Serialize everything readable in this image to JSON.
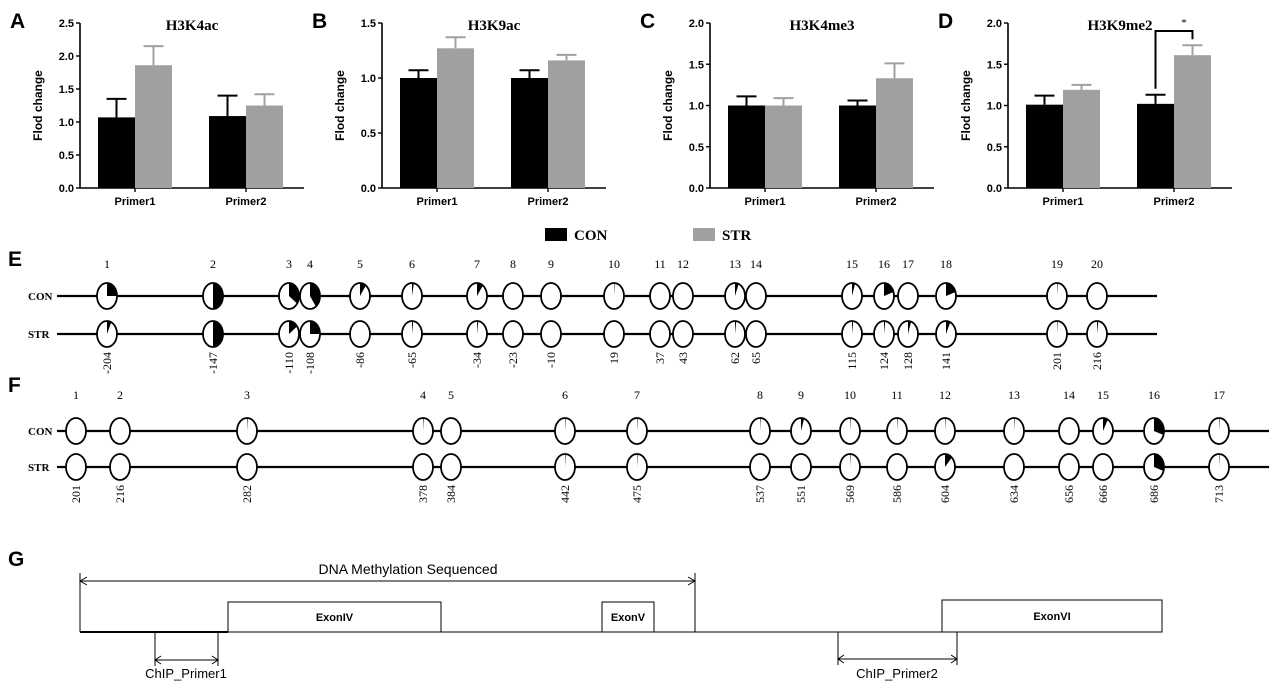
{
  "colors": {
    "con": "#000000",
    "str": "#a0a0a3",
    "line": "#000000"
  },
  "legend": {
    "con_label": "CON",
    "str_label": "STR"
  },
  "chart_data": [
    {
      "type": "bar",
      "panel": "A",
      "title": "H3K4ac",
      "ylabel": "Flod change",
      "xlabel": "",
      "ylim": [
        0,
        2.5
      ],
      "yticks": [
        "0.0",
        "0.5",
        "1.0",
        "1.5",
        "2.0",
        "2.5"
      ],
      "ytick_values": [
        0,
        0.5,
        1.0,
        1.5,
        2.0,
        2.5
      ],
      "categories": [
        "Primer1",
        "Primer2"
      ],
      "series": [
        {
          "name": "CON",
          "values": [
            1.07,
            1.09
          ],
          "err_top": [
            1.35,
            1.4
          ]
        },
        {
          "name": "STR",
          "values": [
            1.86,
            1.25
          ],
          "err_top": [
            2.15,
            1.42
          ]
        }
      ]
    },
    {
      "type": "bar",
      "panel": "B",
      "title": "H3K9ac",
      "ylabel": "Flod change",
      "xlabel": "",
      "ylim": [
        0,
        1.5
      ],
      "yticks": [
        "0.0",
        "0.5",
        "1.0",
        "1.5"
      ],
      "ytick_values": [
        0,
        0.5,
        1.0,
        1.5
      ],
      "categories": [
        "Primer1",
        "Primer2"
      ],
      "series": [
        {
          "name": "CON",
          "values": [
            1.0,
            1.0
          ],
          "err_top": [
            1.07,
            1.07
          ]
        },
        {
          "name": "STR",
          "values": [
            1.27,
            1.16
          ],
          "err_top": [
            1.37,
            1.21
          ]
        }
      ]
    },
    {
      "type": "bar",
      "panel": "C",
      "title": "H3K4me3",
      "ylabel": "Flod change",
      "xlabel": "",
      "ylim": [
        0,
        2.0
      ],
      "yticks": [
        "0.0",
        "0.5",
        "1.0",
        "1.5",
        "2.0"
      ],
      "ytick_values": [
        0,
        0.5,
        1.0,
        1.5,
        2.0
      ],
      "categories": [
        "Primer1",
        "Primer2"
      ],
      "series": [
        {
          "name": "CON",
          "values": [
            1.0,
            1.0
          ],
          "err_top": [
            1.11,
            1.06
          ]
        },
        {
          "name": "STR",
          "values": [
            1.0,
            1.33
          ],
          "err_top": [
            1.09,
            1.51
          ]
        }
      ]
    },
    {
      "type": "bar",
      "panel": "D",
      "title": "H3K9me2",
      "ylabel": "Flod change",
      "xlabel": "",
      "ylim": [
        0,
        2.0
      ],
      "yticks": [
        "0.0",
        "0.5",
        "1.0",
        "1.5",
        "2.0"
      ],
      "ytick_values": [
        0,
        0.5,
        1.0,
        1.5,
        2.0
      ],
      "categories": [
        "Primer1",
        "Primer2"
      ],
      "series": [
        {
          "name": "CON",
          "values": [
            1.01,
            1.02
          ],
          "err_top": [
            1.12,
            1.13
          ]
        },
        {
          "name": "STR",
          "values": [
            1.19,
            1.61
          ],
          "err_top": [
            1.25,
            1.73
          ]
        }
      ],
      "significance": {
        "category": "Primer2",
        "label": "*"
      }
    }
  ],
  "methylation": [
    {
      "panel": "E",
      "row_labels": [
        "CON",
        "STR"
      ],
      "sites": [
        "1",
        "2",
        "3",
        "4",
        "5",
        "6",
        "7",
        "8",
        "9",
        "10",
        "11",
        "12",
        "13",
        "14",
        "15",
        "16",
        "17",
        "18",
        "19",
        "20"
      ],
      "positions": [
        "-204",
        "-147",
        "-110",
        "-108",
        "-86",
        "-65",
        "-34",
        "-23",
        "-10",
        "19",
        "37",
        "43",
        "62",
        "65",
        "115",
        "124",
        "128",
        "141",
        "201",
        "216"
      ],
      "con": [
        0.25,
        0.5,
        0.35,
        0.4,
        0.1,
        0.03,
        0.1,
        0,
        0,
        0.01,
        0,
        0,
        0.06,
        0,
        0.05,
        0.2,
        0,
        0.2,
        0.01,
        0
      ],
      "str": [
        0.07,
        0.5,
        0.15,
        0.25,
        0,
        0.02,
        0.02,
        0,
        0,
        0,
        0,
        0,
        0.02,
        0,
        0.02,
        0.02,
        0.05,
        0.07,
        0.01,
        0.02
      ]
    },
    {
      "panel": "F",
      "row_labels": [
        "CON",
        "STR"
      ],
      "sites": [
        "1",
        "2",
        "3",
        "4",
        "5",
        "6",
        "7",
        "8",
        "9",
        "10",
        "11",
        "12",
        "13",
        "14",
        "15",
        "16",
        "17"
      ],
      "positions": [
        "201",
        "216",
        "282",
        "378",
        "384",
        "442",
        "475",
        "537",
        "551",
        "569",
        "586",
        "604",
        "634",
        "656",
        "666",
        "686",
        "713"
      ],
      "con": [
        0,
        0,
        0.01,
        0.01,
        0,
        0.01,
        0.01,
        0.01,
        0.05,
        0.01,
        0.01,
        0.01,
        0.01,
        0,
        0.08,
        0.3,
        0.01
      ],
      "str": [
        0,
        0,
        0,
        0,
        0,
        0.01,
        0.01,
        0,
        0,
        0.01,
        0,
        0.12,
        0,
        0,
        0,
        0.3,
        0.01
      ]
    }
  ],
  "gene_map": {
    "panel": "G",
    "sequenced_label": "DNA Methylation Sequenced",
    "exons": [
      "ExonIV",
      "ExonV",
      "ExonVI"
    ],
    "primers": [
      "ChIP_Primer1",
      "ChIP_Primer2"
    ]
  }
}
